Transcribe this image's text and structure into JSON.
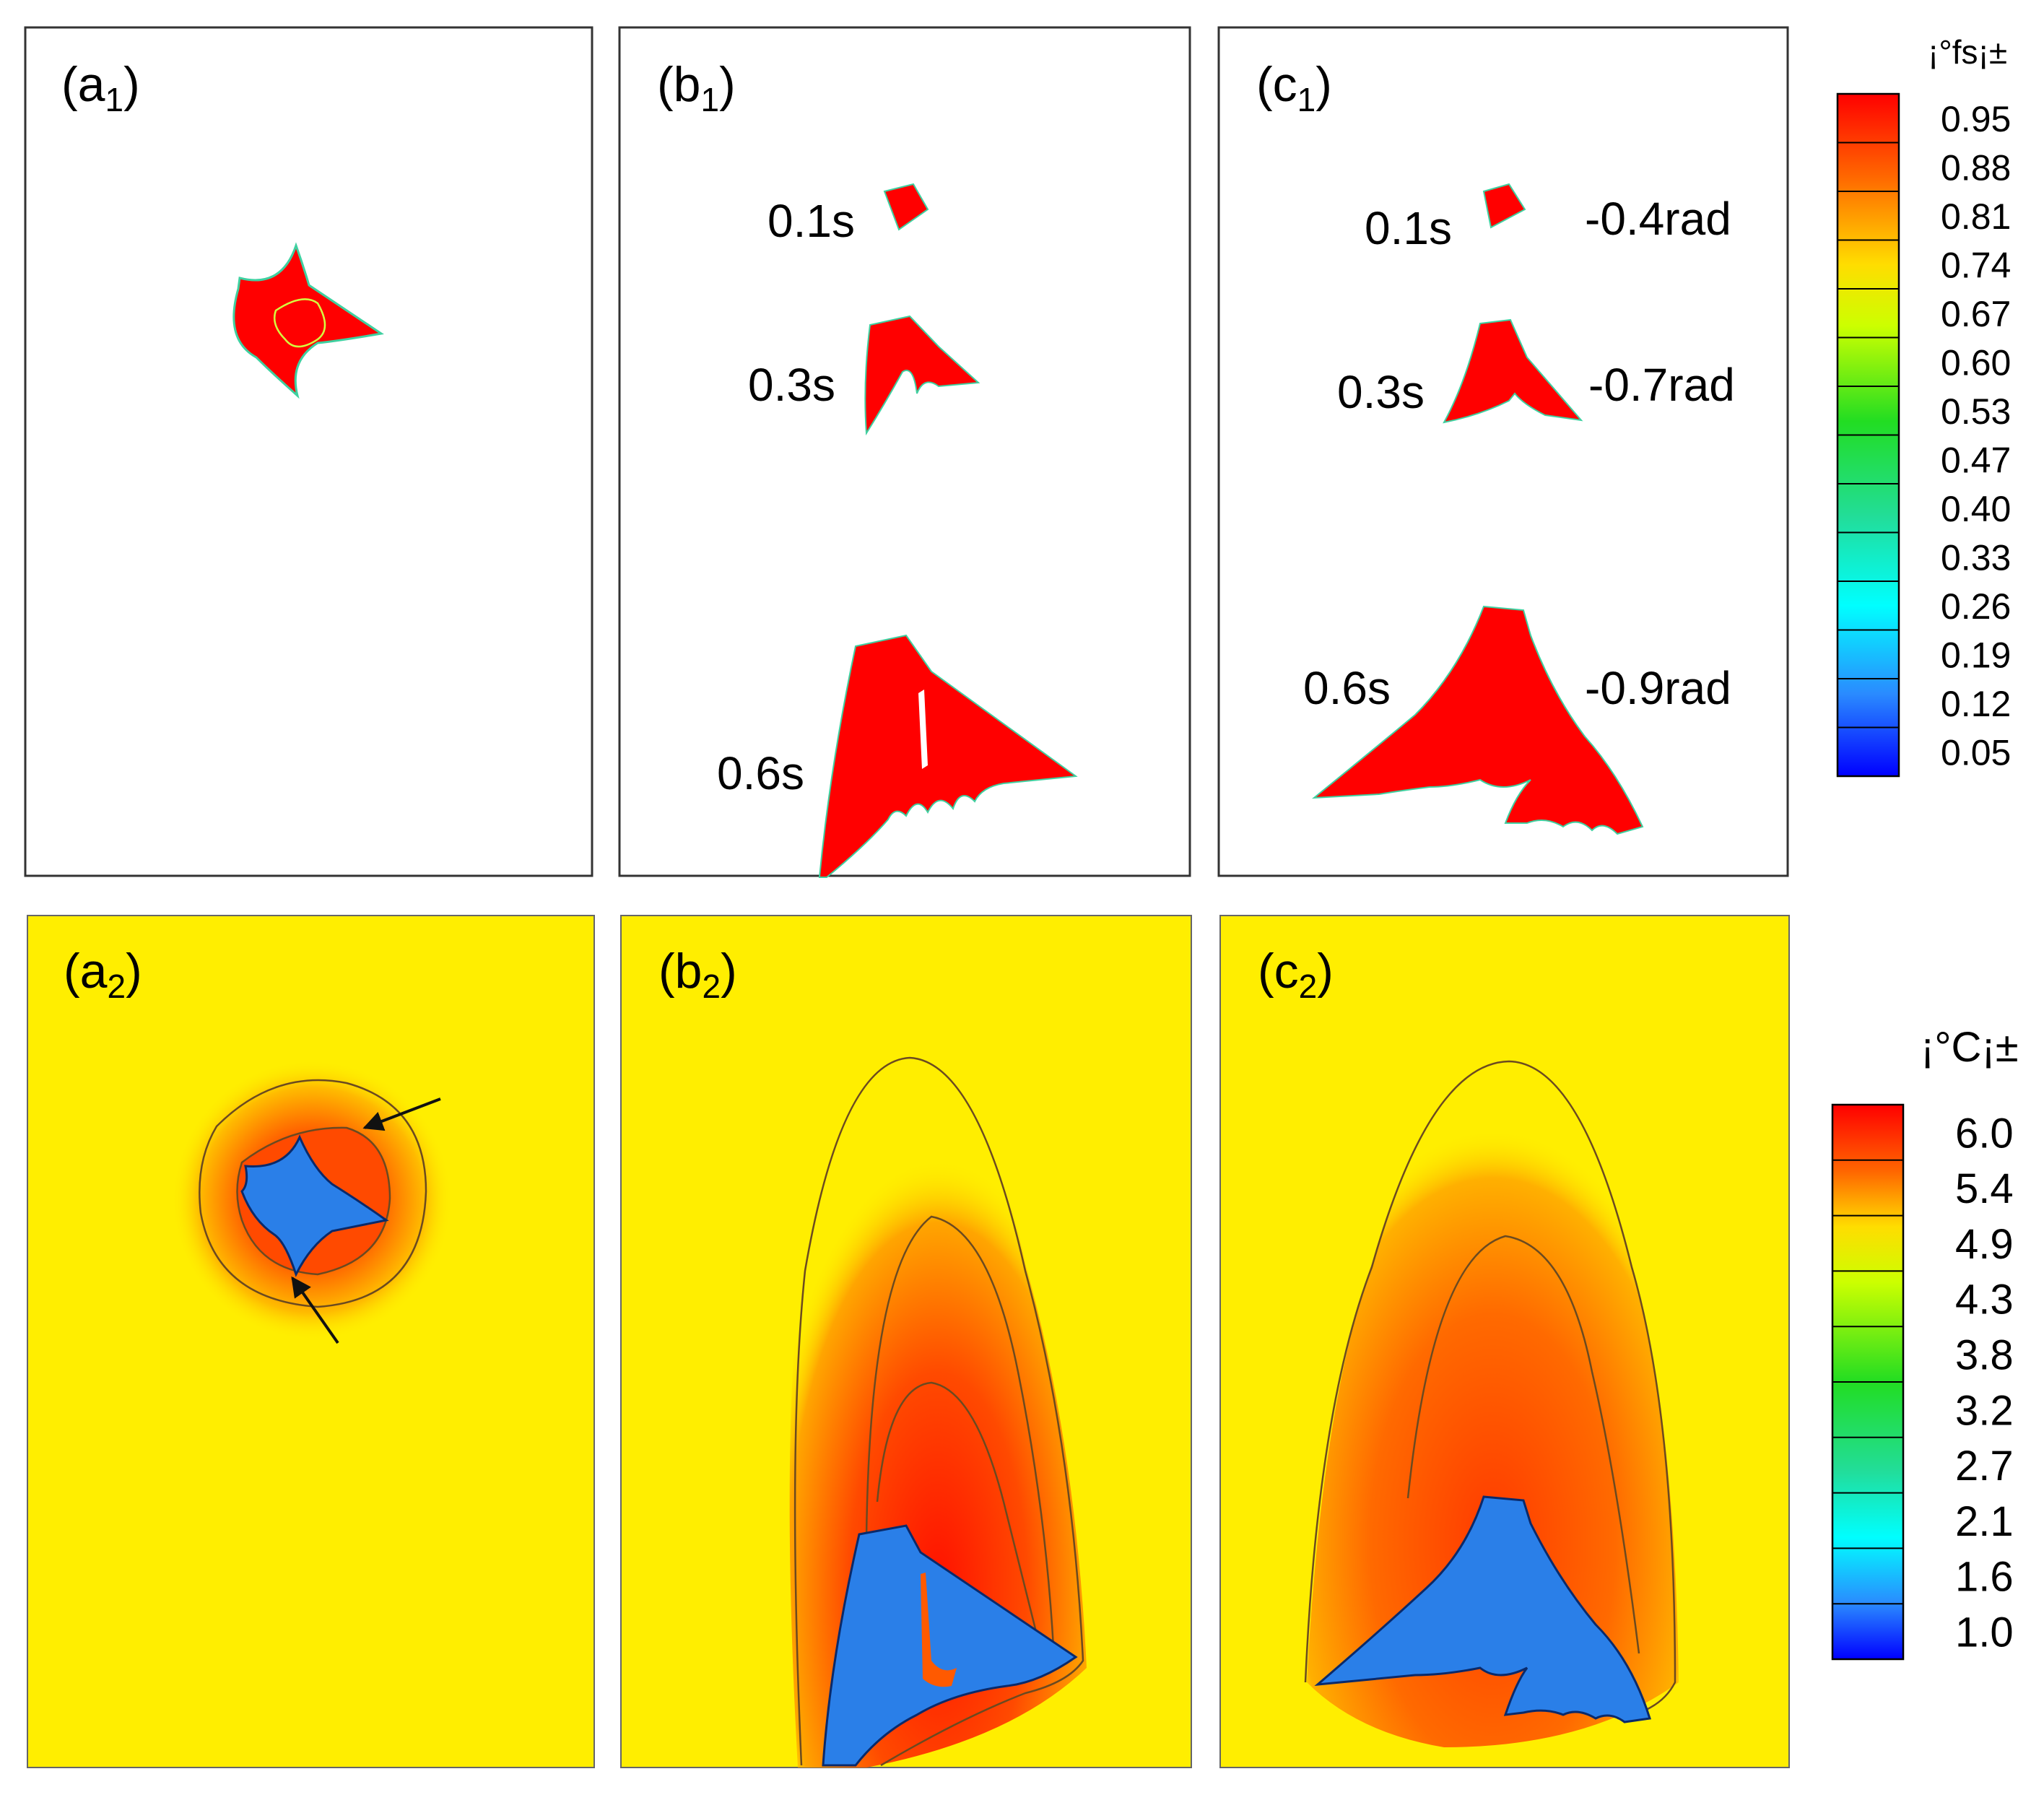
{
  "panels": {
    "a1": {
      "label": "a",
      "sub": "1"
    },
    "b1": {
      "label": "b",
      "sub": "1"
    },
    "c1": {
      "label": "c",
      "sub": "1"
    },
    "a2": {
      "label": "a",
      "sub": "2"
    },
    "b2": {
      "label": "b",
      "sub": "2"
    },
    "c2": {
      "label": "c",
      "sub": "2"
    }
  },
  "annotations": {
    "b1": {
      "t1": "0.1s",
      "t2": "0.3s",
      "t3": "0.6s"
    },
    "c1": {
      "t1": "0.1s",
      "t2": "0.3s",
      "t3": "0.6s",
      "r1": "-0.4rad",
      "r2": "-0.7rad",
      "r3": "-0.9rad"
    }
  },
  "colorbar_fs": {
    "title": "¡°fs¡±",
    "ticks": [
      "0.95",
      "0.88",
      "0.81",
      "0.74",
      "0.67",
      "0.60",
      "0.53",
      "0.47",
      "0.40",
      "0.33",
      "0.26",
      "0.19",
      "0.12",
      "0.05"
    ]
  },
  "colorbar_c": {
    "title": "¡°C¡±",
    "ticks": [
      "6.0",
      "5.4",
      "4.9",
      "4.3",
      "3.8",
      "3.2",
      "2.7",
      "2.1",
      "1.6",
      "1.0"
    ]
  },
  "colors": {
    "solid": "#ff0000",
    "solid_blue": "#2a7fe8",
    "liquid_yellow": "#ffee00",
    "interface_outline": "#3fd0a0"
  }
}
